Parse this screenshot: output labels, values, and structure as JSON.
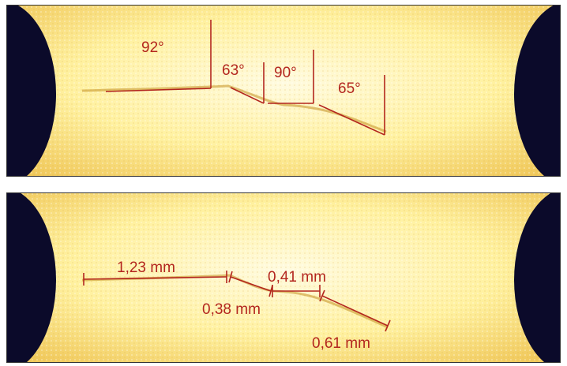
{
  "colors": {
    "background": "#fff7b8",
    "speckle": "#ffffff",
    "dark_region": "#0b0a2a",
    "annotation": "#b3261e"
  },
  "top_panel": {
    "angles": [
      "92°",
      "63°",
      "90°",
      "65°"
    ]
  },
  "bottom_panel": {
    "lengths": [
      "1,23 mm",
      "0,41 mm",
      "0,38 mm",
      "0,61 mm"
    ]
  }
}
